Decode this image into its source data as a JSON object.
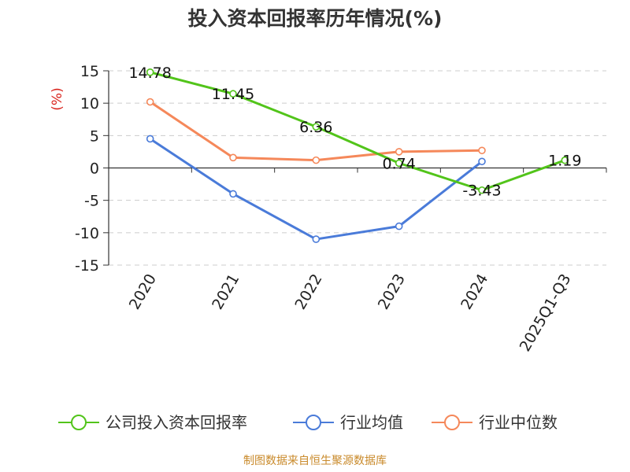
{
  "chart_data": {
    "type": "line",
    "title": "投入资本回报率历年情况(%)",
    "ylabel": "(%)",
    "categories": [
      "2020",
      "2021",
      "2022",
      "2023",
      "2024",
      "2025Q1-Q3"
    ],
    "ylim": [
      -15,
      15
    ],
    "yticks": [
      15,
      10,
      5,
      0,
      -5,
      -10,
      -15
    ],
    "grid": true,
    "legend_position": "bottom",
    "series": [
      {
        "name": "公司投入资本回报率",
        "color": "#52c41a",
        "values": [
          14.78,
          11.45,
          6.36,
          0.74,
          -3.43,
          1.19
        ],
        "labels": [
          "14.78",
          "11.45",
          "6.36",
          "0.74",
          "-3.43",
          "1.19"
        ]
      },
      {
        "name": "行业均值",
        "color": "#4a7bd9",
        "values": [
          4.5,
          -4.0,
          -11.0,
          -9.0,
          1.0,
          null
        ]
      },
      {
        "name": "行业中位数",
        "color": "#f5885a",
        "values": [
          10.2,
          1.6,
          1.2,
          2.5,
          2.7,
          null
        ]
      }
    ]
  },
  "source": {
    "text": "制图数据来自恒生聚源数据库",
    "color": "#c98a2b"
  },
  "ylabel_color": "#d9231c"
}
